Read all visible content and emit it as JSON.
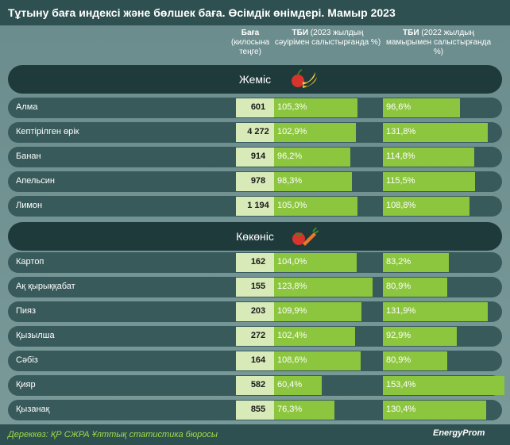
{
  "title": "Тұтыну баға индексі және бөлшек баға. Өсімдік өнімдері. Мамыр 2023",
  "headers": {
    "price_title": "Баға",
    "price_sub": "(килосына теңге)",
    "col1_title": "ТБИ",
    "col1_sub": "(2023 жылдың сәуірімен салыстырғанда %)",
    "col2_title": "ТБИ",
    "col2_sub": "(2022 жылдың мамырымен салыстырғанда %)"
  },
  "icons": {
    "fruits": "fruit-basket-icon",
    "vegetables": "vegetables-icon"
  },
  "colors": {
    "bar": "#8cc63f",
    "row": "#385a5a",
    "section": "#1f3a3a"
  },
  "footer": {
    "source": "Дереккөз: ҚР СЖРА Ұлттық статистика бюросы",
    "logo": "EnergyProm"
  },
  "chart_data": {
    "type": "table",
    "columns": [
      "Баға",
      "ТБИ (2023 жылдың сәуірімен салыстырғанда %)",
      "ТБИ (2022 жылдың мамырымен салыстырғанда %)"
    ],
    "groups": [
      {
        "name": "Жеміс",
        "rows": [
          {
            "label": "Алма",
            "price": "601",
            "cpi_m": 105.3,
            "cpi_y": 96.6,
            "cpi_m_text": "105,3%",
            "cpi_y_text": "96,6%"
          },
          {
            "label": "Кептірілген өрік",
            "price": "4 272",
            "cpi_m": 102.9,
            "cpi_y": 131.8,
            "cpi_m_text": "102,9%",
            "cpi_y_text": "131,8%"
          },
          {
            "label": "Банан",
            "price": "914",
            "cpi_m": 96.2,
            "cpi_y": 114.8,
            "cpi_m_text": "96,2%",
            "cpi_y_text": "114,8%"
          },
          {
            "label": "Апельсин",
            "price": "978",
            "cpi_m": 98.3,
            "cpi_y": 115.5,
            "cpi_m_text": "98,3%",
            "cpi_y_text": "115,5%"
          },
          {
            "label": "Лимон",
            "price": "1 194",
            "cpi_m": 105.0,
            "cpi_y": 108.8,
            "cpi_m_text": "105,0%",
            "cpi_y_text": "108,8%"
          }
        ]
      },
      {
        "name": "Көкөніс",
        "rows": [
          {
            "label": "Картоп",
            "price": "162",
            "cpi_m": 104.0,
            "cpi_y": 83.2,
            "cpi_m_text": "104,0%",
            "cpi_y_text": "83,2%"
          },
          {
            "label": "Ақ қырыққабат",
            "price": "155",
            "cpi_m": 123.8,
            "cpi_y": 80.9,
            "cpi_m_text": "123,8%",
            "cpi_y_text": "80,9%"
          },
          {
            "label": "Пияз",
            "price": "203",
            "cpi_m": 109.9,
            "cpi_y": 131.9,
            "cpi_m_text": "109,9%",
            "cpi_y_text": "131,9%"
          },
          {
            "label": "Қызылша",
            "price": "272",
            "cpi_m": 102.4,
            "cpi_y": 92.9,
            "cpi_m_text": "102,4%",
            "cpi_y_text": "92,9%"
          },
          {
            "label": "Сәбіз",
            "price": "164",
            "cpi_m": 108.6,
            "cpi_y": 80.9,
            "cpi_m_text": "108,6%",
            "cpi_y_text": "80,9%"
          },
          {
            "label": "Қияр",
            "price": "582",
            "cpi_m": 60.4,
            "cpi_y": 153.4,
            "cpi_m_text": "60,4%",
            "cpi_y_text": "153,4%"
          },
          {
            "label": "Қызанақ",
            "price": "855",
            "cpi_m": 76.3,
            "cpi_y": 130.4,
            "cpi_m_text": "76,3%",
            "cpi_y_text": "130,4%"
          }
        ]
      }
    ]
  }
}
